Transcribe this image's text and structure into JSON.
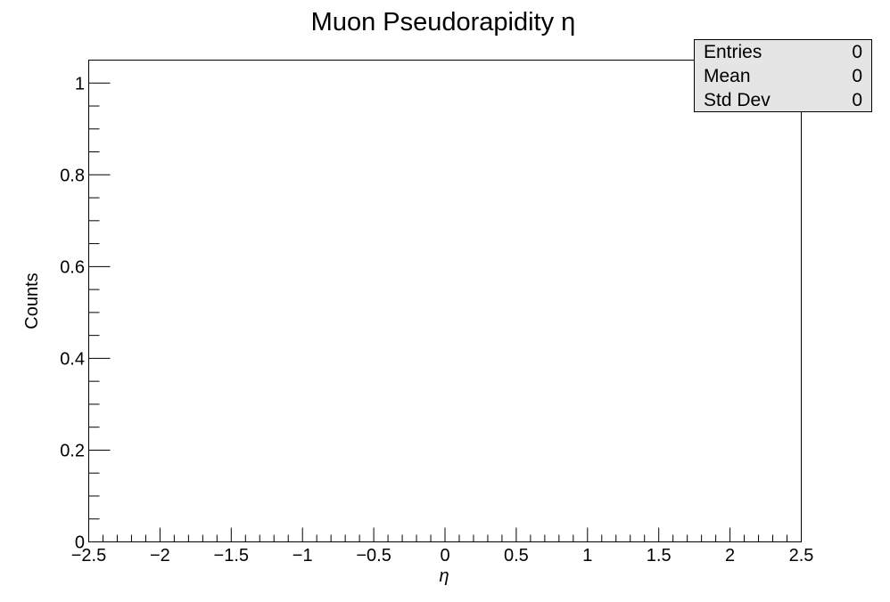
{
  "chart_data": {
    "type": "bar",
    "title": "Muon Pseudorapidity η",
    "xlabel": "η",
    "ylabel": "Counts",
    "xlim": [
      -2.5,
      2.5
    ],
    "ylim": [
      0,
      1.05
    ],
    "x_tick_labels": [
      "−2.5",
      "−2",
      "−1.5",
      "−1",
      "−0.5",
      "0",
      "0.5",
      "1",
      "1.5",
      "2",
      "2.5"
    ],
    "y_tick_labels": [
      "0",
      "0.2",
      "0.4",
      "0.6",
      "0.8",
      "1"
    ],
    "x": [],
    "values": [],
    "grid": false,
    "stats_box": {
      "background": "#e5e5e5",
      "rows": [
        {
          "label": "Entries",
          "value": "0"
        },
        {
          "label": "Mean",
          "value": "0"
        },
        {
          "label": "Std Dev",
          "value": "0"
        }
      ]
    }
  }
}
